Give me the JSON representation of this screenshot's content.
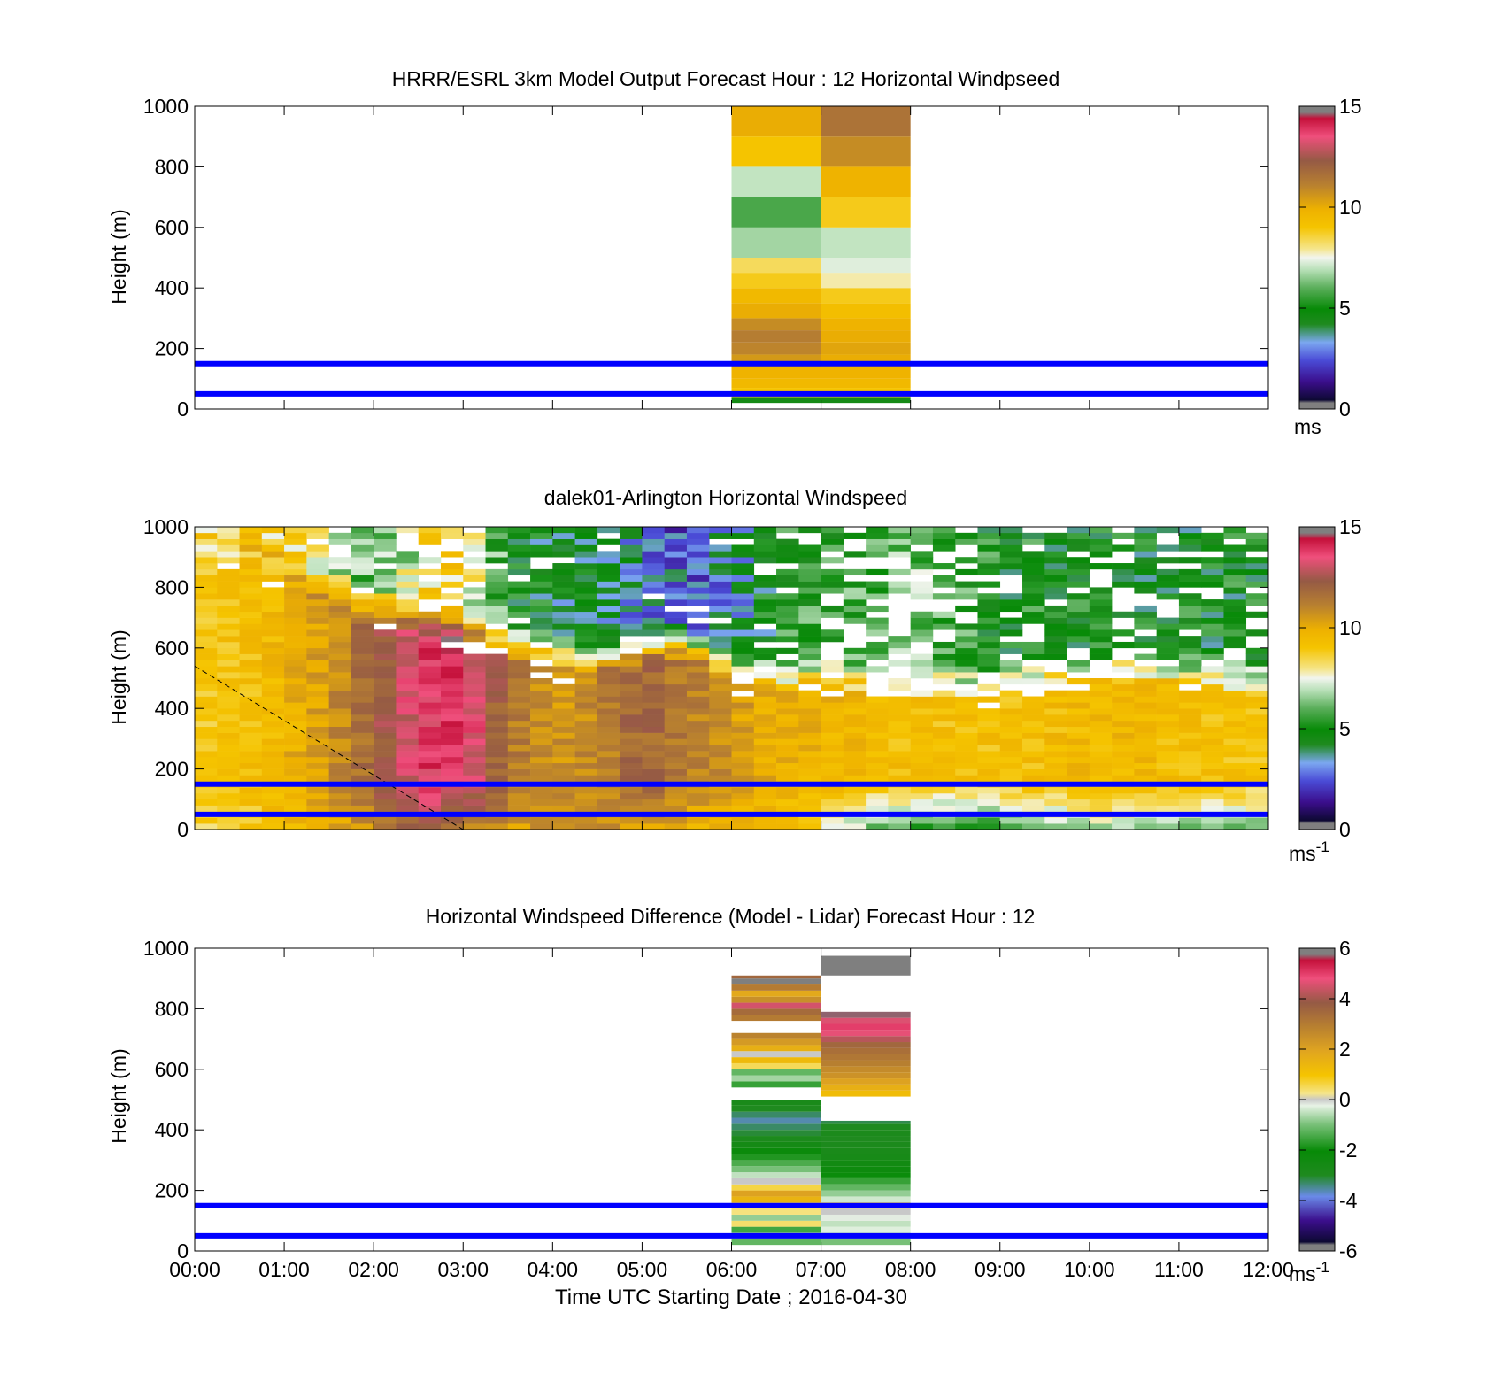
{
  "figure": {
    "xlabel": "Time UTC  Starting Date ; 2016-04-30",
    "xticks": [
      "00:00",
      "01:00",
      "02:00",
      "03:00",
      "04:00",
      "05:00",
      "06:00",
      "07:00",
      "08:00",
      "09:00",
      "10:00",
      "11:00",
      "12:00"
    ]
  },
  "chart_data": [
    {
      "type": "heatmap",
      "title": "HRRR/ESRL 3km Model Output   Forecast Hour : 12 Horizontal Windpseed",
      "ylabel": "Height (m)",
      "colorbar_unit": "ms",
      "colorbar_unit_sup": "",
      "xlim_hours": [
        0,
        12
      ],
      "ylim": [
        0,
        1000
      ],
      "yticks": [
        0,
        200,
        400,
        600,
        800,
        1000
      ],
      "colorbar_range": [
        0,
        15
      ],
      "colorbar_ticks": [
        0,
        5,
        10,
        15
      ],
      "colormap": "windspeed",
      "reference_lines_m": [
        50,
        150
      ],
      "reference_line_color": "#0000ff",
      "columns": [
        {
          "start": 6,
          "end": 7,
          "levels": [
            {
              "bottom": 20,
              "top": 40,
              "value": 4.5
            },
            {
              "bottom": 40,
              "top": 70,
              "value": 9.0
            },
            {
              "bottom": 70,
              "top": 100,
              "value": 9.5
            },
            {
              "bottom": 100,
              "top": 140,
              "value": 9.8
            },
            {
              "bottom": 140,
              "top": 180,
              "value": 10.5
            },
            {
              "bottom": 180,
              "top": 220,
              "value": 11.0
            },
            {
              "bottom": 220,
              "top": 260,
              "value": 11.2
            },
            {
              "bottom": 260,
              "top": 300,
              "value": 10.8
            },
            {
              "bottom": 300,
              "top": 350,
              "value": 10.0
            },
            {
              "bottom": 350,
              "top": 400,
              "value": 9.5
            },
            {
              "bottom": 400,
              "top": 450,
              "value": 8.8
            },
            {
              "bottom": 450,
              "top": 500,
              "value": 8.3
            },
            {
              "bottom": 500,
              "top": 600,
              "value": 6.7
            },
            {
              "bottom": 600,
              "top": 700,
              "value": 5.8
            },
            {
              "bottom": 700,
              "top": 800,
              "value": 7.0
            },
            {
              "bottom": 800,
              "top": 900,
              "value": 9.0
            },
            {
              "bottom": 900,
              "top": 1000,
              "value": 10.0
            }
          ]
        },
        {
          "start": 7,
          "end": 8,
          "levels": [
            {
              "bottom": 20,
              "top": 40,
              "value": 4.5
            },
            {
              "bottom": 40,
              "top": 70,
              "value": 9.0
            },
            {
              "bottom": 70,
              "top": 100,
              "value": 9.5
            },
            {
              "bottom": 100,
              "top": 140,
              "value": 9.8
            },
            {
              "bottom": 140,
              "top": 180,
              "value": 10.0
            },
            {
              "bottom": 180,
              "top": 220,
              "value": 10.2
            },
            {
              "bottom": 220,
              "top": 260,
              "value": 10.0
            },
            {
              "bottom": 260,
              "top": 300,
              "value": 9.8
            },
            {
              "bottom": 300,
              "top": 350,
              "value": 9.3
            },
            {
              "bottom": 350,
              "top": 400,
              "value": 8.8
            },
            {
              "bottom": 400,
              "top": 450,
              "value": 7.8
            },
            {
              "bottom": 450,
              "top": 500,
              "value": 7.3
            },
            {
              "bottom": 500,
              "top": 600,
              "value": 7.0
            },
            {
              "bottom": 600,
              "top": 700,
              "value": 8.8
            },
            {
              "bottom": 700,
              "top": 800,
              "value": 9.8
            },
            {
              "bottom": 800,
              "top": 900,
              "value": 10.8
            },
            {
              "bottom": 900,
              "top": 1000,
              "value": 11.5
            }
          ]
        }
      ]
    },
    {
      "type": "heatmap",
      "title": "dalek01-Arlington  Horizontal Windspeed",
      "ylabel": "Height (m)",
      "colorbar_unit": "ms",
      "colorbar_unit_sup": "-1",
      "xlim_hours": [
        0,
        12
      ],
      "ylim": [
        0,
        1000
      ],
      "yticks": [
        0,
        200,
        400,
        600,
        800,
        1000
      ],
      "colorbar_range": [
        0,
        15
      ],
      "colorbar_ticks": [
        0,
        5,
        10,
        15
      ],
      "colormap": "windspeed",
      "reference_lines_m": [
        50,
        150
      ],
      "reference_line_color": "#0000ff",
      "column_width_hours": 0.25,
      "bin_height_m": 20,
      "profile_hours": [
        0,
        0.75,
        1.5,
        2.0,
        2.5,
        2.75,
        3.0,
        3.25,
        3.5,
        4.0,
        4.5,
        5.0,
        5.5,
        6.0,
        6.5,
        7.0,
        7.5,
        8.0,
        8.5,
        9.0,
        9.5,
        10.0,
        10.5,
        11.0,
        11.75
      ],
      "profile_surface": [
        8.5,
        9.0,
        10.0,
        11.0,
        12.0,
        12.0,
        11.5,
        11.0,
        10.5,
        10.5,
        11.0,
        10.5,
        10.0,
        9.5,
        9.5,
        8.5,
        6.5,
        5.5,
        5.5,
        5.5,
        6.5,
        7.0,
        7.0,
        6.5,
        6.5
      ],
      "profile_core": [
        8.8,
        9.3,
        10.5,
        12.0,
        13.5,
        14.0,
        13.8,
        12.8,
        11.5,
        10.5,
        11.0,
        12.0,
        11.2,
        10.5,
        9.8,
        9.8,
        9.5,
        9.2,
        9.2,
        9.2,
        9.3,
        9.5,
        9.5,
        9.3,
        9.0
      ],
      "profile_core_top": [
        900,
        850,
        720,
        680,
        640,
        620,
        600,
        580,
        560,
        520,
        500,
        540,
        560,
        480,
        440,
        460,
        440,
        420,
        420,
        420,
        460,
        470,
        480,
        460,
        440
      ],
      "profile_upper": [
        8.0,
        8.8,
        7.5,
        6.0,
        7.5,
        9.0,
        8.5,
        6.5,
        5.0,
        4.5,
        4.0,
        3.5,
        2.5,
        3.5,
        5.0,
        5.5,
        5.5,
        6.5,
        5.5,
        5.0,
        5.0,
        4.8,
        4.8,
        4.8,
        4.8
      ],
      "profile_gap_fraction": [
        0.02,
        0.05,
        0.1,
        0.2,
        0.3,
        0.3,
        0.2,
        0.1,
        0.05,
        0.05,
        0.05,
        0.08,
        0.1,
        0.15,
        0.15,
        0.2,
        0.3,
        0.35,
        0.35,
        0.3,
        0.25,
        0.2,
        0.2,
        0.2,
        0.2
      ],
      "diagonal_line": {
        "start": {
          "hours": 0.0,
          "height_m": 540
        },
        "end": {
          "hours": 3.0,
          "height_m": 0
        }
      }
    },
    {
      "type": "heatmap",
      "title": "Horizontal Windspeed Difference (Model - Lidar) Forecast Hour : 12",
      "ylabel": "Height (m)",
      "colorbar_unit": "ms",
      "colorbar_unit_sup": "-1",
      "xlim_hours": [
        0,
        12
      ],
      "ylim": [
        0,
        1000
      ],
      "yticks": [
        0,
        200,
        400,
        600,
        800,
        1000
      ],
      "colorbar_range": [
        -6,
        6
      ],
      "colorbar_ticks": [
        -6,
        -4,
        -2,
        0,
        2,
        4,
        6
      ],
      "colormap": "difference",
      "reference_lines_m": [
        50,
        150
      ],
      "reference_line_color": "#0000ff",
      "columns": [
        {
          "start": 6,
          "end": 7,
          "levels": [
            {
              "bottom": 20,
              "top": 40,
              "value": -1.2
            },
            {
              "bottom": 40,
              "top": 60,
              "value": -0.5
            },
            {
              "bottom": 60,
              "top": 80,
              "value": -1.5
            },
            {
              "bottom": 80,
              "top": 100,
              "value": 0.4
            },
            {
              "bottom": 100,
              "top": 120,
              "value": -0.8
            },
            {
              "bottom": 120,
              "top": 140,
              "value": 0.3
            },
            {
              "bottom": 140,
              "top": 160,
              "value": 1.0
            },
            {
              "bottom": 160,
              "top": 180,
              "value": 1.5
            },
            {
              "bottom": 180,
              "top": 200,
              "value": 2.0
            },
            {
              "bottom": 200,
              "top": 220,
              "value": 0.6
            },
            {
              "bottom": 220,
              "top": 240,
              "value": 0.0
            },
            {
              "bottom": 240,
              "top": 260,
              "value": -0.5
            },
            {
              "bottom": 260,
              "top": 280,
              "value": -1.0
            },
            {
              "bottom": 280,
              "top": 300,
              "value": -1.4
            },
            {
              "bottom": 300,
              "top": 320,
              "value": -1.8
            },
            {
              "bottom": 320,
              "top": 340,
              "value": -2.2
            },
            {
              "bottom": 340,
              "top": 360,
              "value": -2.6
            },
            {
              "bottom": 360,
              "top": 380,
              "value": -2.9
            },
            {
              "bottom": 380,
              "top": 400,
              "value": -3.1
            },
            {
              "bottom": 400,
              "top": 420,
              "value": -3.3
            },
            {
              "bottom": 420,
              "top": 440,
              "value": -3.6
            },
            {
              "bottom": 440,
              "top": 460,
              "value": -3.3
            },
            {
              "bottom": 460,
              "top": 480,
              "value": -3.0
            },
            {
              "bottom": 480,
              "top": 500,
              "value": -2.8
            },
            {
              "bottom": 540,
              "top": 560,
              "value": -1.6
            },
            {
              "bottom": 560,
              "top": 580,
              "value": -0.7
            },
            {
              "bottom": 580,
              "top": 600,
              "value": -1.2
            },
            {
              "bottom": 600,
              "top": 620,
              "value": 0.5
            },
            {
              "bottom": 620,
              "top": 640,
              "value": 1.3
            },
            {
              "bottom": 640,
              "top": 660,
              "value": 0.0
            },
            {
              "bottom": 660,
              "top": 680,
              "value": 1.6
            },
            {
              "bottom": 680,
              "top": 700,
              "value": 2.2
            },
            {
              "bottom": 700,
              "top": 720,
              "value": 2.8
            },
            {
              "bottom": 760,
              "top": 780,
              "value": 3.0
            },
            {
              "bottom": 780,
              "top": 800,
              "value": 3.4
            },
            {
              "bottom": 800,
              "top": 820,
              "value": 4.5
            },
            {
              "bottom": 820,
              "top": 840,
              "value": 2.5
            },
            {
              "bottom": 840,
              "top": 860,
              "value": 1.8
            },
            {
              "bottom": 860,
              "top": 880,
              "value": 3.0
            },
            {
              "bottom": 880,
              "top": 900,
              "value": 5.8
            },
            {
              "bottom": 900,
              "top": 910,
              "value": 3.5
            }
          ]
        },
        {
          "start": 7,
          "end": 8,
          "levels": [
            {
              "bottom": 20,
              "top": 40,
              "value": -1.0
            },
            {
              "bottom": 40,
              "top": 60,
              "value": -0.6
            },
            {
              "bottom": 60,
              "top": 80,
              "value": -0.3
            },
            {
              "bottom": 80,
              "top": 100,
              "value": -0.5
            },
            {
              "bottom": 100,
              "top": 120,
              "value": -0.2
            },
            {
              "bottom": 120,
              "top": 140,
              "value": 0.0
            },
            {
              "bottom": 140,
              "top": 160,
              "value": 1.0
            },
            {
              "bottom": 160,
              "top": 180,
              "value": -0.4
            },
            {
              "bottom": 180,
              "top": 200,
              "value": -0.8
            },
            {
              "bottom": 200,
              "top": 220,
              "value": -1.2
            },
            {
              "bottom": 220,
              "top": 240,
              "value": -1.6
            },
            {
              "bottom": 240,
              "top": 260,
              "value": -2.0
            },
            {
              "bottom": 260,
              "top": 280,
              "value": -2.3
            },
            {
              "bottom": 280,
              "top": 300,
              "value": -2.5
            },
            {
              "bottom": 300,
              "top": 320,
              "value": -2.7
            },
            {
              "bottom": 320,
              "top": 340,
              "value": -2.8
            },
            {
              "bottom": 340,
              "top": 360,
              "value": -2.9
            },
            {
              "bottom": 360,
              "top": 380,
              "value": -3.0
            },
            {
              "bottom": 380,
              "top": 400,
              "value": -2.9
            },
            {
              "bottom": 400,
              "top": 420,
              "value": -3.0
            },
            {
              "bottom": 420,
              "top": 430,
              "value": -3.2
            },
            {
              "bottom": 510,
              "top": 530,
              "value": 1.2
            },
            {
              "bottom": 530,
              "top": 550,
              "value": 1.6
            },
            {
              "bottom": 550,
              "top": 570,
              "value": 2.0
            },
            {
              "bottom": 570,
              "top": 590,
              "value": 2.4
            },
            {
              "bottom": 590,
              "top": 610,
              "value": 2.6
            },
            {
              "bottom": 610,
              "top": 630,
              "value": 2.9
            },
            {
              "bottom": 630,
              "top": 650,
              "value": 3.1
            },
            {
              "bottom": 650,
              "top": 670,
              "value": 3.3
            },
            {
              "bottom": 670,
              "top": 690,
              "value": 3.5
            },
            {
              "bottom": 690,
              "top": 710,
              "value": 4.2
            },
            {
              "bottom": 710,
              "top": 730,
              "value": 4.7
            },
            {
              "bottom": 730,
              "top": 750,
              "value": 5.0
            },
            {
              "bottom": 750,
              "top": 770,
              "value": 4.6
            },
            {
              "bottom": 770,
              "top": 790,
              "value": 5.7
            },
            {
              "bottom": 910,
              "top": 975,
              "value": 6.5
            }
          ]
        }
      ]
    }
  ]
}
